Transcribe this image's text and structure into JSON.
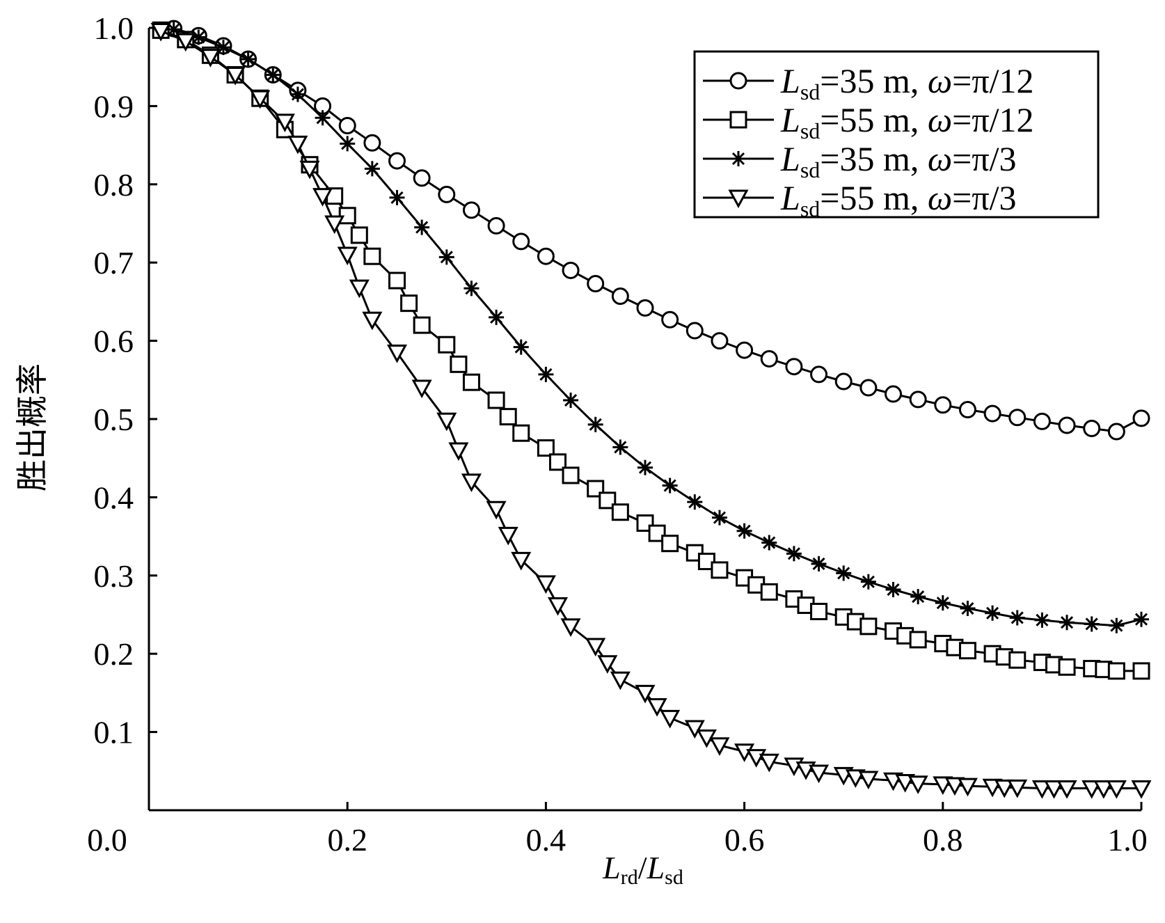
{
  "chart_data": {
    "type": "line",
    "ylabel": "胜出概率",
    "xlabel": {
      "num_var": "L",
      "num_sub": "rd",
      "sep": "/",
      "den_var": "L",
      "den_sub": "sd"
    },
    "xlim": [
      0.0,
      1.0
    ],
    "ylim": [
      0.0,
      1.0
    ],
    "x_ticks": [
      0.0,
      0.2,
      0.4,
      0.6,
      0.8,
      1.0
    ],
    "x_tick_labels": [
      "0.0",
      "0.2",
      "0.4",
      "0.6",
      "0.8",
      "1.0"
    ],
    "y_ticks": [
      0.0,
      0.1,
      0.2,
      0.3,
      0.4,
      0.5,
      0.6,
      0.7,
      0.8,
      0.9,
      1.0
    ],
    "y_tick_labels": [
      "0.0",
      "0.1",
      "0.2",
      "0.3",
      "0.4",
      "0.5",
      "0.6",
      "0.7",
      "0.8",
      "0.9",
      "1.0"
    ],
    "grid": false,
    "legend_position": "top-right",
    "series": [
      {
        "name": "Lsd=35 m, ω=π/12",
        "legend": {
          "var": "L",
          "sub": "sd",
          "rest": "=35 m, ",
          "greek": "ω",
          "tail": "=π/12"
        },
        "marker": "circle",
        "x": [
          0.025,
          0.05,
          0.075,
          0.1,
          0.125,
          0.15,
          0.175,
          0.2,
          0.225,
          0.25,
          0.275,
          0.3,
          0.325,
          0.35,
          0.375,
          0.4,
          0.425,
          0.45,
          0.475,
          0.5,
          0.525,
          0.55,
          0.575,
          0.6,
          0.625,
          0.65,
          0.675,
          0.7,
          0.725,
          0.75,
          0.775,
          0.8,
          0.825,
          0.85,
          0.875,
          0.9,
          0.925,
          0.95,
          0.975,
          1.0
        ],
        "y": [
          0.999,
          0.99,
          0.977,
          0.96,
          0.94,
          0.92,
          0.9,
          0.875,
          0.853,
          0.83,
          0.808,
          0.787,
          0.767,
          0.747,
          0.727,
          0.708,
          0.69,
          0.673,
          0.657,
          0.642,
          0.627,
          0.613,
          0.6,
          0.588,
          0.577,
          0.567,
          0.557,
          0.548,
          0.54,
          0.532,
          0.525,
          0.518,
          0.512,
          0.507,
          0.502,
          0.497,
          0.492,
          0.488,
          0.484,
          0.501
        ]
      },
      {
        "name": "Lsd=55 m, ω=π/12",
        "legend": {
          "var": "L",
          "sub": "sd",
          "rest": "=55 m, ",
          "greek": "ω",
          "tail": "=π/12"
        },
        "marker": "square",
        "x": [
          0.012,
          0.037,
          0.062,
          0.087,
          0.112,
          0.137,
          0.162,
          0.187,
          0.2,
          0.212,
          0.225,
          0.25,
          0.262,
          0.275,
          0.3,
          0.312,
          0.325,
          0.35,
          0.362,
          0.375,
          0.4,
          0.412,
          0.425,
          0.45,
          0.462,
          0.475,
          0.5,
          0.512,
          0.525,
          0.55,
          0.562,
          0.575,
          0.6,
          0.612,
          0.625,
          0.65,
          0.662,
          0.675,
          0.7,
          0.712,
          0.725,
          0.75,
          0.762,
          0.775,
          0.8,
          0.812,
          0.825,
          0.85,
          0.862,
          0.875,
          0.9,
          0.912,
          0.925,
          0.95,
          0.962,
          0.975,
          1.0
        ],
        "y": [
          0.997,
          0.985,
          0.965,
          0.94,
          0.91,
          0.87,
          0.825,
          0.785,
          0.76,
          0.735,
          0.708,
          0.677,
          0.648,
          0.62,
          0.595,
          0.57,
          0.547,
          0.524,
          0.503,
          0.482,
          0.463,
          0.445,
          0.428,
          0.411,
          0.396,
          0.381,
          0.367,
          0.354,
          0.341,
          0.329,
          0.318,
          0.307,
          0.297,
          0.288,
          0.279,
          0.27,
          0.262,
          0.254,
          0.247,
          0.241,
          0.235,
          0.229,
          0.223,
          0.218,
          0.213,
          0.208,
          0.204,
          0.2,
          0.196,
          0.192,
          0.189,
          0.186,
          0.183,
          0.181,
          0.18,
          0.178,
          0.178
        ]
      },
      {
        "name": "Lsd=35 m, ω=π/3",
        "legend": {
          "var": "L",
          "sub": "sd",
          "rest": "=35 m, ",
          "greek": "ω",
          "tail": "=π/3"
        },
        "marker": "asterisk",
        "x": [
          0.025,
          0.05,
          0.075,
          0.1,
          0.125,
          0.15,
          0.175,
          0.2,
          0.225,
          0.25,
          0.275,
          0.3,
          0.325,
          0.35,
          0.375,
          0.4,
          0.425,
          0.45,
          0.475,
          0.5,
          0.525,
          0.55,
          0.575,
          0.6,
          0.625,
          0.65,
          0.675,
          0.7,
          0.725,
          0.75,
          0.775,
          0.8,
          0.825,
          0.85,
          0.875,
          0.9,
          0.925,
          0.95,
          0.975,
          1.0
        ],
        "y": [
          0.998,
          0.988,
          0.975,
          0.96,
          0.94,
          0.915,
          0.885,
          0.852,
          0.82,
          0.783,
          0.745,
          0.707,
          0.667,
          0.63,
          0.592,
          0.557,
          0.524,
          0.493,
          0.464,
          0.438,
          0.415,
          0.394,
          0.374,
          0.357,
          0.342,
          0.328,
          0.315,
          0.303,
          0.292,
          0.282,
          0.273,
          0.265,
          0.258,
          0.252,
          0.246,
          0.243,
          0.24,
          0.238,
          0.236,
          0.244
        ]
      },
      {
        "name": "Lsd=55 m, ω=π/3",
        "legend": {
          "var": "L",
          "sub": "sd",
          "rest": "=55 m, ",
          "greek": "ω",
          "tail": "=π/3"
        },
        "marker": "triangle-down",
        "x": [
          0.012,
          0.037,
          0.062,
          0.087,
          0.112,
          0.137,
          0.15,
          0.162,
          0.175,
          0.187,
          0.2,
          0.212,
          0.225,
          0.25,
          0.275,
          0.3,
          0.312,
          0.325,
          0.35,
          0.362,
          0.375,
          0.4,
          0.412,
          0.425,
          0.45,
          0.462,
          0.475,
          0.5,
          0.512,
          0.525,
          0.55,
          0.562,
          0.575,
          0.6,
          0.612,
          0.625,
          0.65,
          0.662,
          0.675,
          0.7,
          0.712,
          0.725,
          0.75,
          0.762,
          0.775,
          0.8,
          0.812,
          0.825,
          0.85,
          0.862,
          0.875,
          0.9,
          0.912,
          0.925,
          0.95,
          0.962,
          0.975,
          1.0
        ],
        "y": [
          0.996,
          0.983,
          0.963,
          0.94,
          0.91,
          0.88,
          0.852,
          0.82,
          0.785,
          0.75,
          0.71,
          0.668,
          0.627,
          0.585,
          0.54,
          0.498,
          0.46,
          0.42,
          0.385,
          0.352,
          0.32,
          0.29,
          0.262,
          0.235,
          0.21,
          0.188,
          0.167,
          0.15,
          0.133,
          0.118,
          0.105,
          0.093,
          0.083,
          0.075,
          0.068,
          0.062,
          0.057,
          0.052,
          0.048,
          0.045,
          0.042,
          0.04,
          0.038,
          0.036,
          0.034,
          0.033,
          0.032,
          0.031,
          0.03,
          0.029,
          0.029,
          0.028,
          0.028,
          0.028,
          0.028,
          0.028,
          0.028,
          0.028
        ]
      }
    ]
  }
}
